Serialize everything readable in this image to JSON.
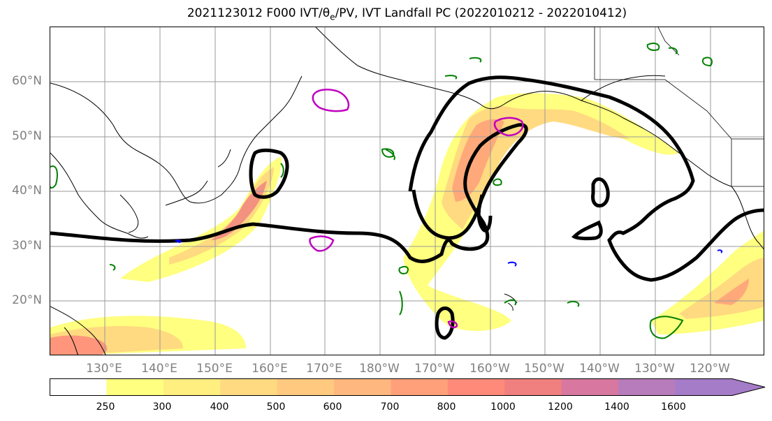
{
  "title": {
    "prefix": "2021123012 F000 IVT/",
    "theta_symbol": "θ",
    "theta_sub": "e",
    "suffix": "/PV, IVT Landfall PC (2022010212 - 2022010412)"
  },
  "map": {
    "projection": "PlateCarree",
    "lon_range": [
      120,
      250
    ],
    "lat_range": [
      10,
      70
    ],
    "lat_labels": [
      "20°N",
      "30°N",
      "40°N",
      "50°N",
      "60°N"
    ],
    "lon_labels": [
      "130°E",
      "140°E",
      "150°E",
      "160°E",
      "170°E",
      "180°W",
      "170°W",
      "160°W",
      "150°W",
      "140°W",
      "130°W",
      "120°W"
    ],
    "colors": {
      "gridline": "#9a9a9a",
      "coastline": "#000000",
      "pc_contour": "#000000",
      "theta_contour": "#008000",
      "pv_contour": "#c000c0",
      "blue_contour": "#0000ff"
    }
  },
  "colorbar": {
    "ticks": [
      "250",
      "300",
      "400",
      "500",
      "600",
      "700",
      "800",
      "1000",
      "1200",
      "1400",
      "1600"
    ],
    "colors": [
      "#ffffff",
      "#ffff80",
      "#ffee80",
      "#ffda80",
      "#ffc980",
      "#ffb780",
      "#ffa07a",
      "#ff8a7a",
      "#f08080",
      "#d878a0",
      "#b77cbb",
      "#a57cc8"
    ],
    "extend": "max",
    "units_label": ""
  }
}
